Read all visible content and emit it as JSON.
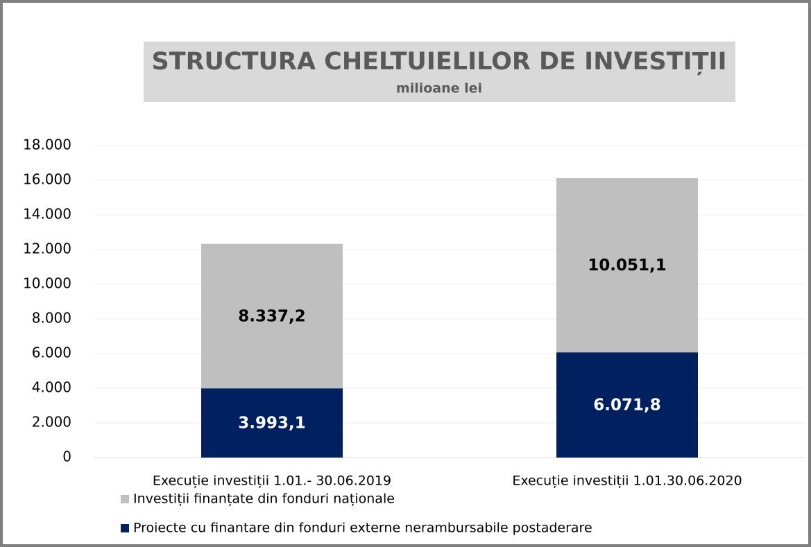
{
  "chart_data": {
    "type": "stacked-bar",
    "title": "STRUCTURA CHELTUIELILOR DE INVESTIȚII",
    "subtitle": "milioane lei",
    "categories": [
      "Execuție investiții 1.01.- 30.06.2019",
      "Execuție investiții 1.01.30.06.2020"
    ],
    "series": [
      {
        "name": "Proiecte cu finantare din fonduri externe nerambursabile postaderare",
        "color": "#002060",
        "values": [
          3993.1,
          6071.8
        ],
        "value_labels": [
          "3.993,1",
          "6.071,8"
        ]
      },
      {
        "name": "Investiții finanțate din fonduri naționale",
        "color": "#bfbfbf",
        "values": [
          8337.2,
          10051.1
        ],
        "value_labels": [
          "8.337,2",
          "10.051,1"
        ]
      }
    ],
    "ylim": [
      0,
      18000
    ],
    "yticks": [
      0,
      {
        "value": 2000,
        "label": "2.000"
      },
      {
        "value": 4000,
        "label": "4.000"
      },
      {
        "value": 6000,
        "label": "6.000"
      },
      {
        "value": 8000,
        "label": "8.000"
      },
      {
        "value": 10000,
        "label": "10.000"
      },
      {
        "value": 12000,
        "label": "12.000"
      },
      {
        "value": 14000,
        "label": "14.000"
      },
      {
        "value": 16000,
        "label": "16.000"
      },
      {
        "value": 18000,
        "label": "18.000"
      }
    ],
    "grid": true
  }
}
